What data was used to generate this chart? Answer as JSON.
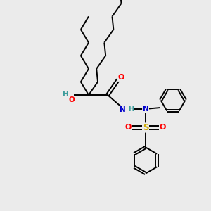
{
  "bg_color": "#ebebeb",
  "bond_color": "#000000",
  "line_width": 1.4,
  "atom_colors": {
    "O": "#ff0000",
    "N": "#0000cc",
    "S": "#ccaa00",
    "H_teal": "#3d9c9c",
    "C": "#000000"
  },
  "figsize": [
    3.0,
    3.0
  ],
  "dpi": 100
}
